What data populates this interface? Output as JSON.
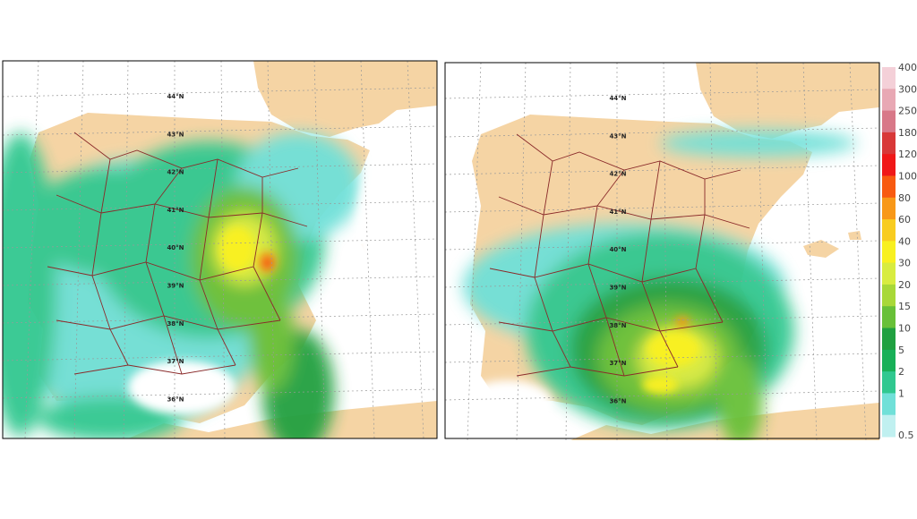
{
  "maps": [
    {
      "lat_labels": [
        "44°N",
        "43°N",
        "42°N",
        "41°N",
        "40°N",
        "39°N",
        "38°N",
        "37°N",
        "36°N"
      ]
    },
    {
      "lat_labels": [
        "44°N",
        "43°N",
        "42°N",
        "41°N",
        "40°N",
        "39°N",
        "38°N",
        "37°N",
        "36°N"
      ]
    }
  ],
  "legend": {
    "levels": [
      {
        "label": 400,
        "color": "#f4d0d8"
      },
      {
        "label": 300,
        "color": "#e8a8b4"
      },
      {
        "label": 250,
        "color": "#d87888"
      },
      {
        "label": 180,
        "color": "#d83838"
      },
      {
        "label": 120,
        "color": "#f01818"
      },
      {
        "label": 100,
        "color": "#f85a10"
      },
      {
        "label": 80,
        "color": "#f89818"
      },
      {
        "label": 60,
        "color": "#f8cc20"
      },
      {
        "label": 40,
        "color": "#f8f020"
      },
      {
        "label": 30,
        "color": "#d8ec40"
      },
      {
        "label": 20,
        "color": "#a8d838"
      },
      {
        "label": 15,
        "color": "#68c038"
      },
      {
        "label": 10,
        "color": "#20a040"
      },
      {
        "label": 5,
        "color": "#18b058"
      },
      {
        "label": 2,
        "color": "#30c890"
      },
      {
        "label": 1,
        "color": "#70e0d8"
      },
      {
        "label": 0.5,
        "color": "#c0f0f0"
      }
    ]
  }
}
